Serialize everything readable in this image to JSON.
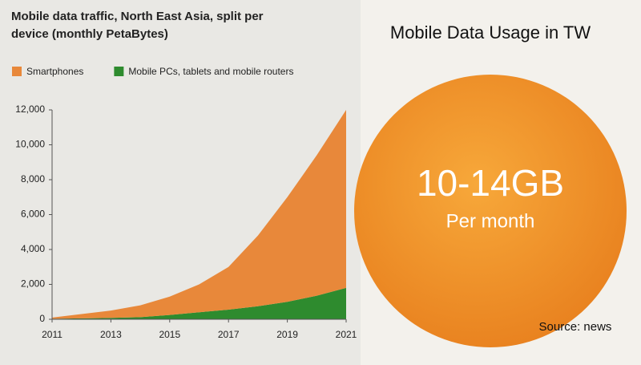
{
  "chart_data": {
    "type": "stacked_area",
    "title": "Mobile data traffic, North East Asia, split per device (monthly PetaBytes)",
    "x": [
      2011,
      2012,
      2013,
      2014,
      2015,
      2016,
      2017,
      2018,
      2019,
      2020,
      2021
    ],
    "series": [
      {
        "name": "Smartphones",
        "color": "#e8883a",
        "values": [
          70,
          250,
          420,
          680,
          1050,
          1600,
          2450,
          4050,
          6000,
          8050,
          10200
        ]
      },
      {
        "name": "Mobile PCs, tablets and mobile routers",
        "color": "#2e8b2e",
        "values": [
          30,
          50,
          80,
          120,
          250,
          400,
          550,
          750,
          1000,
          1350,
          1800
        ]
      }
    ],
    "xlim": [
      2011,
      2021
    ],
    "xticks": [
      2011,
      2013,
      2015,
      2017,
      2019,
      2021
    ],
    "ylim": [
      0,
      12000
    ],
    "yticks": [
      0,
      {
        "value": 2000,
        "label": "2,000"
      },
      {
        "value": 4000,
        "label": "4,000"
      },
      {
        "value": 6000,
        "label": "6,000"
      },
      {
        "value": 8000,
        "label": "8,000"
      },
      {
        "value": 10000,
        "label": "10,000"
      },
      {
        "value": 12000,
        "label": "12,000"
      }
    ],
    "grid": false,
    "stack_order": [
      1,
      0
    ]
  },
  "panel": {
    "heading": "Mobile Data Usage in TW",
    "big_text": "10-14GB",
    "sub_text": "Per month",
    "source": "Source: news"
  }
}
